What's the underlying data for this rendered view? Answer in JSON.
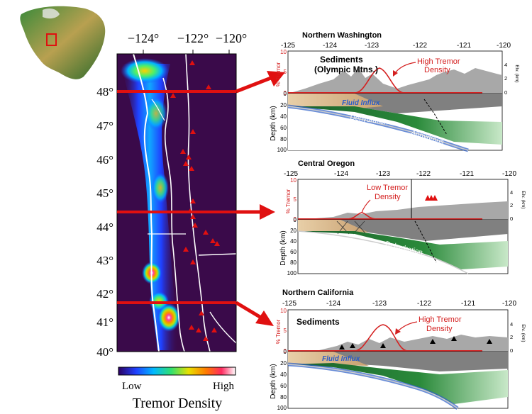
{
  "map": {
    "top_ticks": [
      "−124°",
      "−122°",
      "−120°"
    ],
    "lat_ticks": [
      "48°",
      "47°",
      "46°",
      "45°",
      "44°",
      "43°",
      "42°",
      "41°",
      "40°"
    ],
    "colorbar_low": "Low",
    "colorbar_high": "High",
    "colorbar_title": "Tremor Density"
  },
  "profiles": [
    {
      "title": "Northern Washington",
      "lon_ticks": [
        "-125",
        "-124",
        "-123",
        "-122",
        "-121",
        "-120"
      ],
      "tremor_ticks": [
        "10",
        "5",
        "0"
      ],
      "tremor_label": "% Tremor",
      "elev_ticks": [
        "4",
        "2",
        "0"
      ],
      "elev_label": "Elv. (km)",
      "depth_ticks": [
        "0",
        "20",
        "40",
        "60",
        "80",
        "100"
      ],
      "depth_label": "Depth (km)",
      "label_sediments": "Sediments",
      "label_sediments_sub": "(Olympic Mtns.)",
      "label_tremor": "High Tremor",
      "label_tremor_sub": "Density",
      "label_fluid": "Fluid Influx",
      "label_dehydration": "Dehydration",
      "label_anhydrous": "Anhydrous"
    },
    {
      "title": "Central Oregon",
      "lon_ticks": [
        "-125",
        "-124",
        "-123",
        "-122",
        "-121",
        "-120"
      ],
      "tremor_ticks": [
        "10",
        "5",
        "0"
      ],
      "tremor_label": "% Tremor",
      "elev_ticks": [
        "4",
        "2",
        "0"
      ],
      "elev_label": "Elv. (km)",
      "depth_ticks": [
        "0",
        "20",
        "40",
        "60",
        "80",
        "100"
      ],
      "depth_label": "Depth (km)",
      "label_tremor": "Low Tremor",
      "label_tremor_sub": "Density",
      "label_dehydration": "Dehydration"
    },
    {
      "title": "Northern California",
      "lon_ticks": [
        "-125",
        "-124",
        "-123",
        "-122",
        "-121",
        "-120"
      ],
      "tremor_ticks": [
        "10",
        "5",
        "0"
      ],
      "tremor_label": "% Tremor",
      "elev_ticks": [
        "4",
        "2",
        "0"
      ],
      "elev_label": "Elv. (km)",
      "depth_ticks": [
        "0",
        "20",
        "40",
        "60",
        "80",
        "100"
      ],
      "depth_label": "Depth (km)",
      "label_sediments": "Sediments",
      "label_tremor": "High Tremor",
      "label_tremor_sub": "Density",
      "label_fluid": "Fluid Influx",
      "label_dehydration": "Dehydration",
      "label_dehydration2": "Dehydration"
    }
  ],
  "colors": {
    "accent_red": "#e01010",
    "tremor_line": "#d42020",
    "fluid_blue": "#2a5cc8",
    "map_bg": "#3a0a4a"
  }
}
